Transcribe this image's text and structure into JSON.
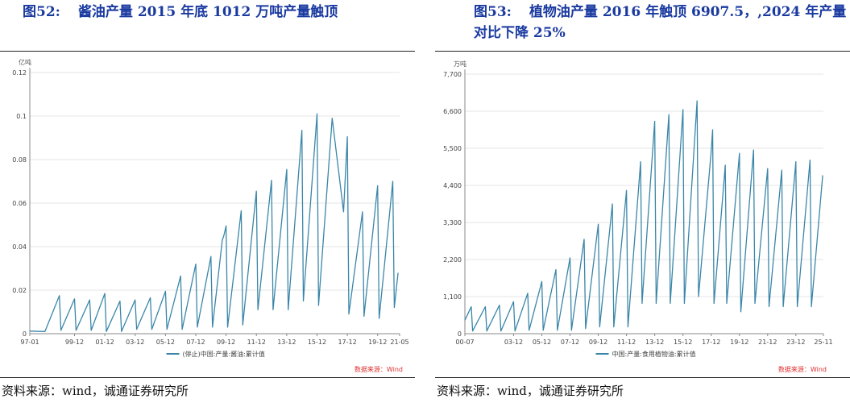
{
  "left": {
    "fig_label": "图52:",
    "fig_title": "酱油产量 2015 年底 1012 万吨产量触顶",
    "source_text": "资料来源：wind，诚通证券研究所",
    "chart_data": {
      "type": "line",
      "ylabel": "亿吨",
      "ylim": [
        0,
        0.12
      ],
      "yticks": [
        "0",
        "0.02",
        "0.04",
        "0.06",
        "0.08",
        "0.1",
        "0.12"
      ],
      "xticks": [
        "97-01",
        "99-12",
        "01-12",
        "03-12",
        "05-12",
        "07-12",
        "09-12",
        "11-12",
        "13-12",
        "15-12",
        "17-12",
        "19-12",
        "21-05"
      ],
      "series": [
        {
          "name": "(停止)中国:产量:酱油:累计值",
          "color": "#3a86a8",
          "points": [
            [
              1997.0,
              0.0012
            ],
            [
              1998.0,
              0.001
            ],
            [
              1998.95,
              0.0175
            ],
            [
              1999.05,
              0.0015
            ],
            [
              1999.95,
              0.016
            ],
            [
              2000.05,
              0.0015
            ],
            [
              2000.95,
              0.0155
            ],
            [
              2001.05,
              0.0015
            ],
            [
              2001.95,
              0.0185
            ],
            [
              2002.05,
              0.001
            ],
            [
              2002.95,
              0.015
            ],
            [
              2003.05,
              0.001
            ],
            [
              2003.95,
              0.0155
            ],
            [
              2004.05,
              0.002
            ],
            [
              2004.95,
              0.0165
            ],
            [
              2005.05,
              0.002
            ],
            [
              2005.95,
              0.0195
            ],
            [
              2006.05,
              0.002
            ],
            [
              2006.95,
              0.0265
            ],
            [
              2007.05,
              0.002
            ],
            [
              2007.95,
              0.032
            ],
            [
              2008.05,
              0.003
            ],
            [
              2008.95,
              0.0355
            ],
            [
              2009.05,
              0.003
            ],
            [
              2009.7,
              0.043
            ],
            [
              2009.8,
              0.045
            ],
            [
              2009.95,
              0.0495
            ],
            [
              2010.05,
              0.003
            ],
            [
              2010.95,
              0.0565
            ],
            [
              2011.05,
              0.004
            ],
            [
              2011.95,
              0.0655
            ],
            [
              2012.05,
              0.011
            ],
            [
              2012.95,
              0.0705
            ],
            [
              2013.05,
              0.011
            ],
            [
              2013.95,
              0.0755
            ],
            [
              2014.05,
              0.011
            ],
            [
              2014.95,
              0.0935
            ],
            [
              2015.05,
              0.015
            ],
            [
              2015.95,
              0.101
            ],
            [
              2016.05,
              0.013
            ],
            [
              2016.95,
              0.099
            ],
            [
              2017.7,
              0.056
            ],
            [
              2017.95,
              0.0905
            ],
            [
              2018.05,
              0.009
            ],
            [
              2018.95,
              0.056
            ],
            [
              2019.05,
              0.008
            ],
            [
              2019.95,
              0.068
            ],
            [
              2020.05,
              0.007
            ],
            [
              2020.95,
              0.07
            ],
            [
              2021.05,
              0.012
            ],
            [
              2021.3,
              0.028
            ]
          ]
        }
      ],
      "source_note": "数据来源：Wind"
    }
  },
  "right": {
    "fig_label": "图53:",
    "fig_title": "植物油产量 2016 年触顶 6907.5，,2024 年产量对比下降 25%",
    "source_text": "资料来源：wind，诚通证券研究所",
    "chart_data": {
      "type": "line",
      "ylabel": "万吨",
      "ylim": [
        0,
        7700
      ],
      "yticks": [
        "0",
        "1,100",
        "2,200",
        "3,300",
        "4,400",
        "5,500",
        "6,600",
        "7,700"
      ],
      "xticks": [
        "00-07",
        "03-12",
        "05-12",
        "07-12",
        "09-12",
        "11-12",
        "13-12",
        "15-12",
        "17-12",
        "19-12",
        "21-12",
        "23-12",
        "25-11"
      ],
      "series": [
        {
          "name": "中国:产量:食用植物油:累计值",
          "color": "#3a86a8",
          "points": [
            [
              2000.5,
              400
            ],
            [
              2000.95,
              800
            ],
            [
              2001.05,
              80
            ],
            [
              2001.95,
              800
            ],
            [
              2002.05,
              80
            ],
            [
              2002.95,
              850
            ],
            [
              2003.05,
              80
            ],
            [
              2003.95,
              950
            ],
            [
              2004.05,
              80
            ],
            [
              2004.95,
              1200
            ],
            [
              2005.05,
              100
            ],
            [
              2005.95,
              1550
            ],
            [
              2006.05,
              100
            ],
            [
              2006.95,
              1900
            ],
            [
              2007.05,
              100
            ],
            [
              2007.95,
              2250
            ],
            [
              2008.05,
              100
            ],
            [
              2008.95,
              2800
            ],
            [
              2009.05,
              150
            ],
            [
              2009.95,
              3250
            ],
            [
              2010.05,
              200
            ],
            [
              2010.95,
              3850
            ],
            [
              2011.05,
              200
            ],
            [
              2011.95,
              4250
            ],
            [
              2012.05,
              200
            ],
            [
              2012.95,
              5100
            ],
            [
              2013.05,
              900
            ],
            [
              2013.95,
              6300
            ],
            [
              2014.05,
              900
            ],
            [
              2014.95,
              6500
            ],
            [
              2015.05,
              900
            ],
            [
              2015.95,
              6650
            ],
            [
              2016.05,
              900
            ],
            [
              2016.95,
              6907.5
            ],
            [
              2017.05,
              1100
            ],
            [
              2017.95,
              5400
            ],
            [
              2018.05,
              6050
            ],
            [
              2018.15,
              900
            ],
            [
              2018.95,
              5000
            ],
            [
              2019.05,
              900
            ],
            [
              2019.95,
              5350
            ],
            [
              2020.05,
              650
            ],
            [
              2020.95,
              5450
            ],
            [
              2021.05,
              900
            ],
            [
              2021.95,
              4900
            ],
            [
              2022.05,
              800
            ],
            [
              2022.95,
              4850
            ],
            [
              2023.05,
              800
            ],
            [
              2023.95,
              5100
            ],
            [
              2024.05,
              800
            ],
            [
              2024.95,
              5150
            ],
            [
              2025.05,
              800
            ],
            [
              2025.85,
              4700
            ]
          ]
        }
      ],
      "source_note": "数据来源：Wind"
    }
  }
}
